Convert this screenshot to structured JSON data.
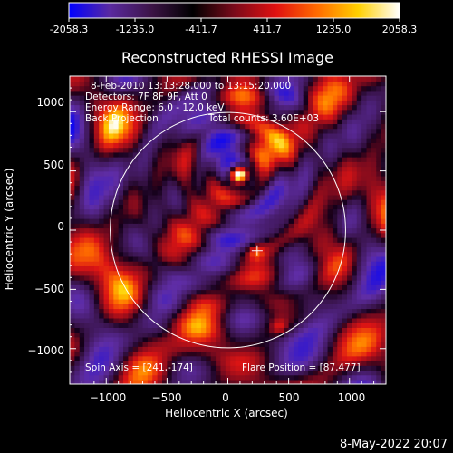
{
  "colorbar": {
    "tick_labels": [
      "-2058.3",
      "-1235.0",
      "-411.7",
      "411.7",
      "1235.0",
      "2058.3"
    ],
    "min": -2058.3,
    "max": 2058.3,
    "colormap_stops": [
      "#0000ff",
      "#5a2aa0",
      "#3c1446",
      "#000000",
      "#7a0a1a",
      "#e01010",
      "#ff6a00",
      "#ffd000",
      "#ffffff"
    ]
  },
  "chart_data": {
    "type": "heatmap",
    "title": "Reconstructed RHESSI Image",
    "xlabel": "Heliocentric X (arcsec)",
    "ylabel": "Heliocentric Y (arcsec)",
    "xlim": [
      -1300,
      1300
    ],
    "ylim": [
      -1300,
      1300
    ],
    "x_ticks": [
      -1000,
      -500,
      0,
      500,
      1000
    ],
    "y_ticks": [
      -1000,
      -500,
      0,
      500,
      1000
    ],
    "x_tick_labels": [
      "−1000",
      "−500",
      "0",
      "500",
      "1000"
    ],
    "y_tick_labels": [
      "−1000",
      "−500",
      "0",
      "500",
      "1000"
    ],
    "solar_disk": {
      "center": [
        0,
        0
      ],
      "radius_arcsec": 968
    },
    "flare_source": {
      "x": 87,
      "y": 477
    },
    "spin_axis": {
      "x": 241,
      "y": -174
    },
    "secondary_sources": [
      {
        "x": 230,
        "y": -180
      },
      {
        "x": 420,
        "y": -810
      }
    ],
    "info_lines": [
      "8-Feb-2010 13:13:28.000 to 13:15:20.000",
      "Detectors: 7F 8F 9F, Att 0",
      "Energy Range: 6.0 - 12.0 keV",
      "Back Projection"
    ],
    "total_counts": "Total counts: 3.60E+03",
    "spin_axis_label": "Spin Axis = [241,-174]",
    "flare_position_label": "Flare Position = [87,477]"
  },
  "footer": {
    "timestamp": "8-May-2022 20:07"
  }
}
